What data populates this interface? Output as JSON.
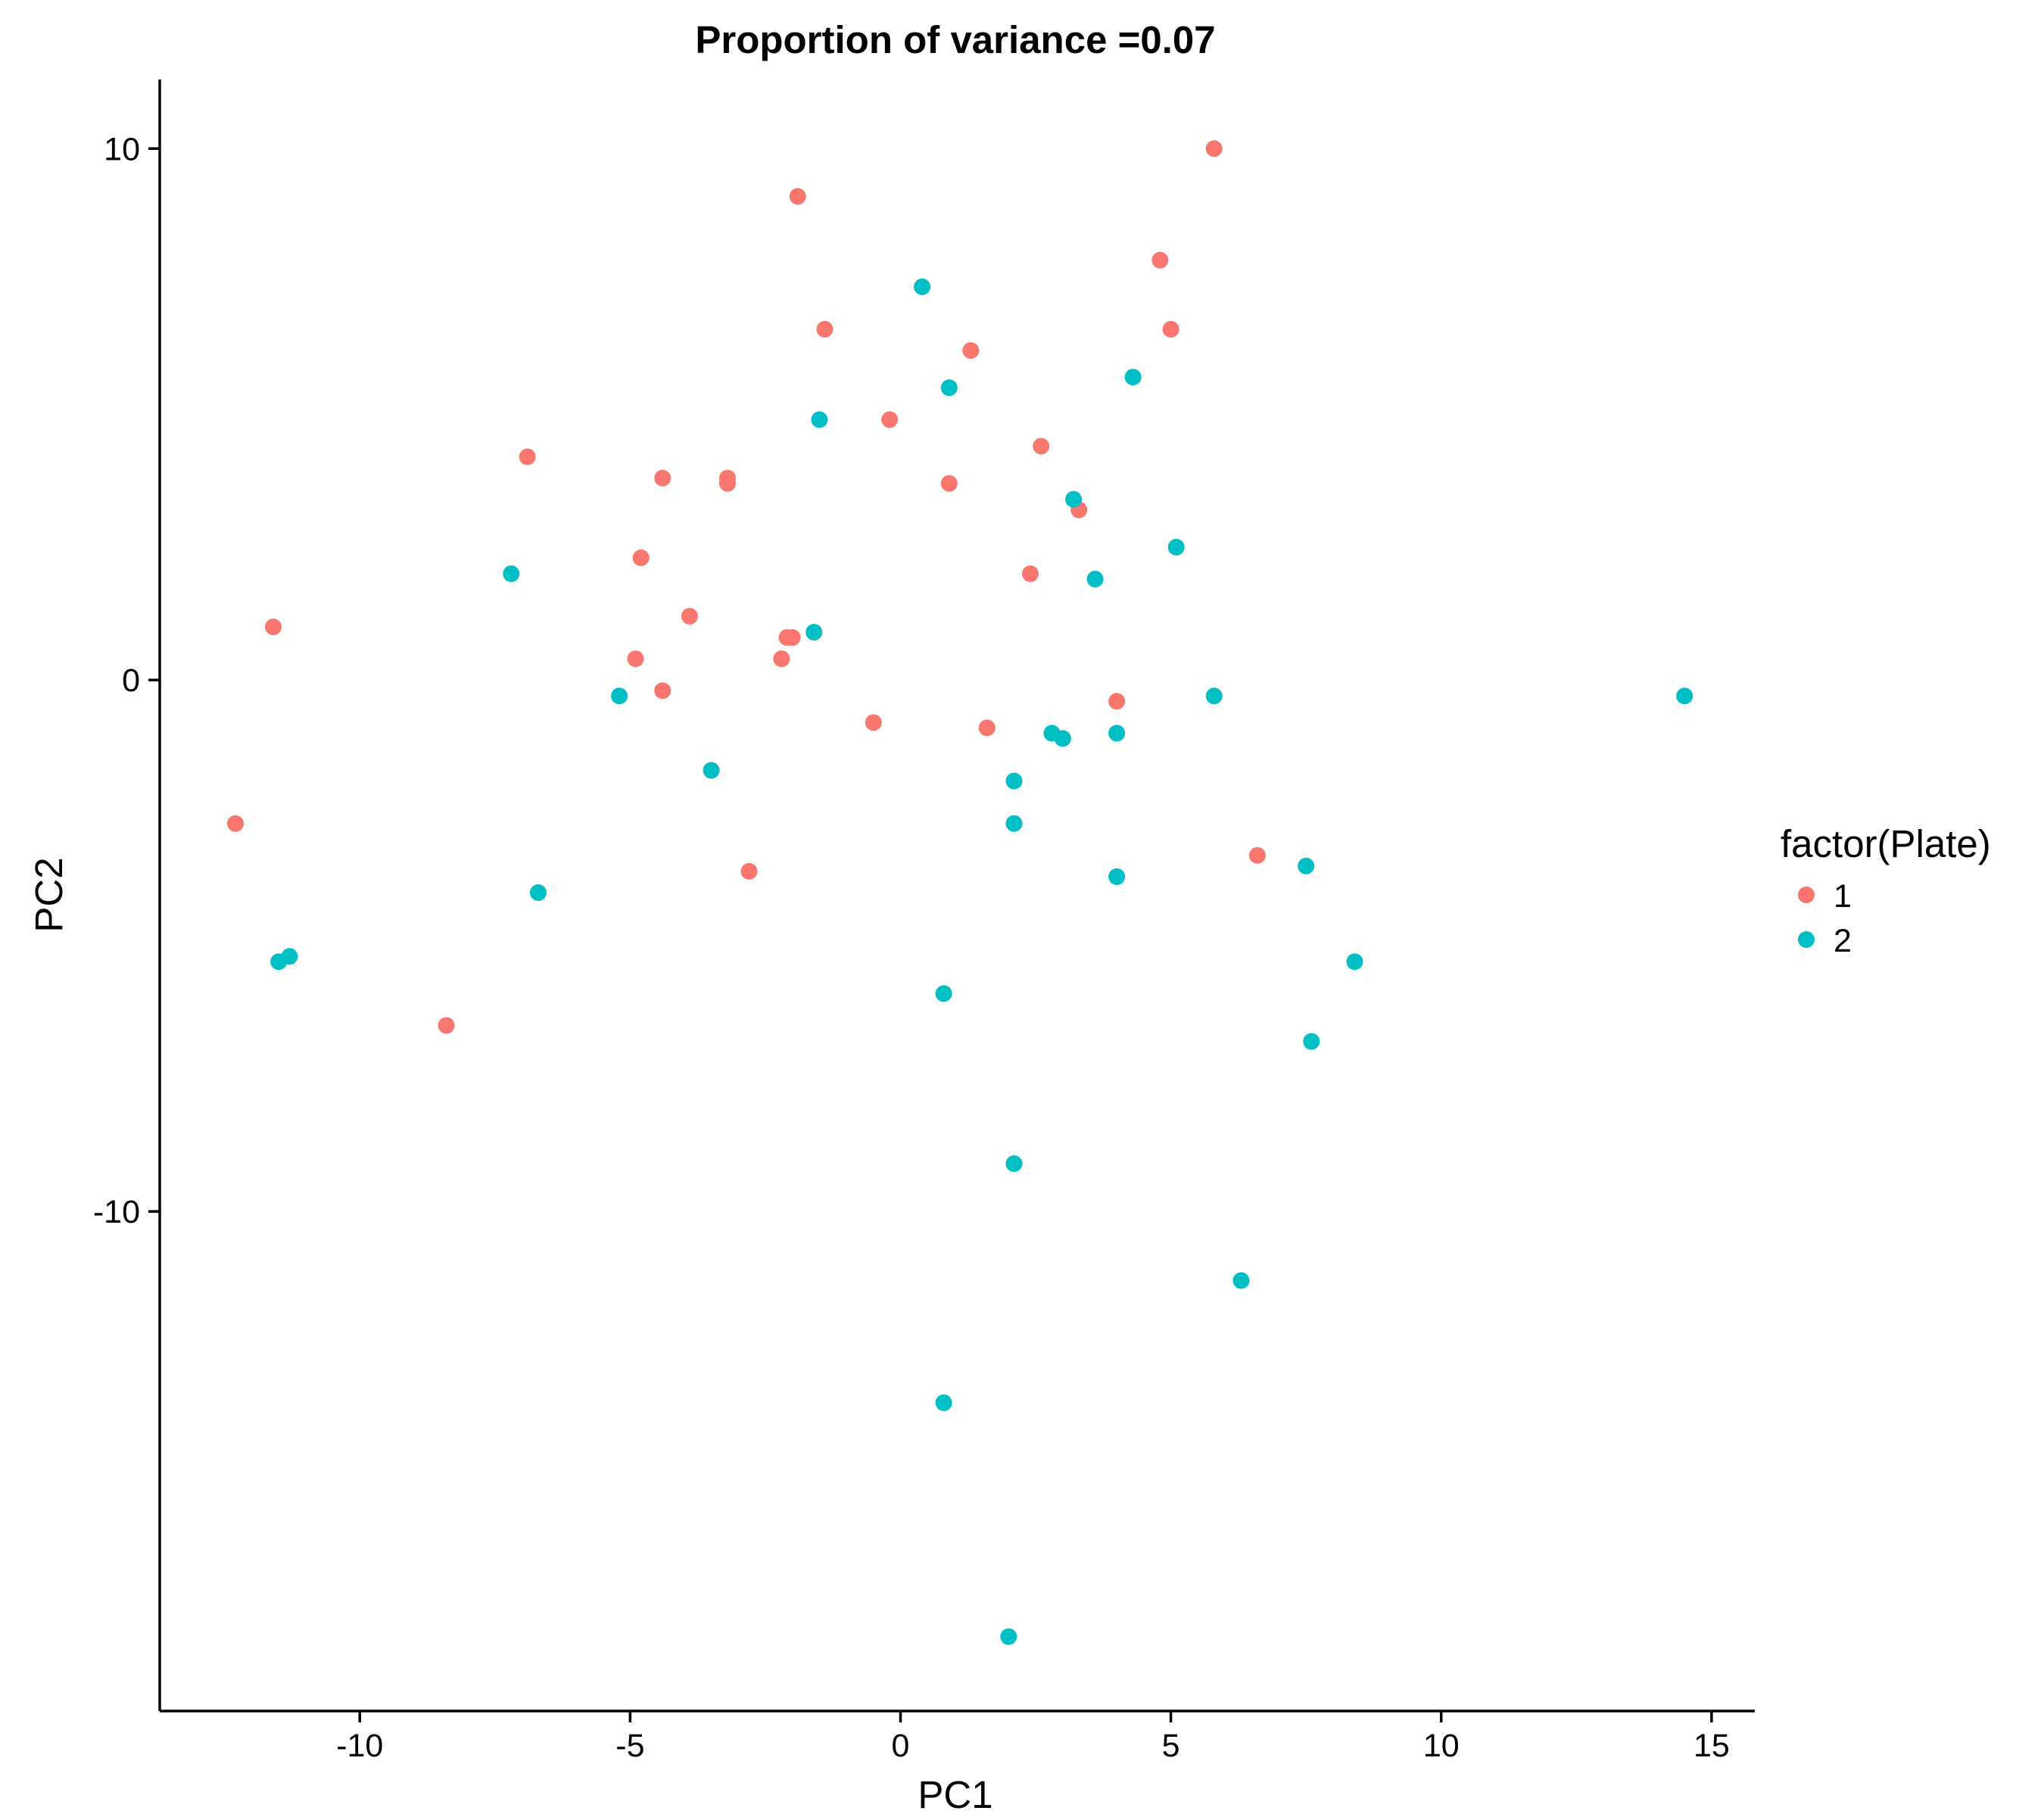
{
  "chart_data": {
    "type": "scatter",
    "title": "Proportion of variance =0.07",
    "xlabel": "PC1",
    "ylabel": "PC2",
    "xlim": [
      -13.7,
      15.8
    ],
    "ylim": [
      -19.4,
      11.3
    ],
    "xticks": [
      -10,
      -5,
      0,
      5,
      10,
      15
    ],
    "xtick_labels": [
      "-10",
      "-5",
      "0",
      "5",
      "10",
      "15"
    ],
    "yticks": [
      -10,
      0,
      10
    ],
    "ytick_labels": [
      "-10",
      "0",
      "10"
    ],
    "grid": false,
    "legend_position": "right",
    "legend": {
      "title": "factor(Plate)",
      "entries": [
        {
          "label": "1",
          "color": "#F8766D"
        },
        {
          "label": "2",
          "color": "#00BFC4"
        }
      ]
    },
    "series": [
      {
        "name": "1",
        "color": "#F8766D",
        "points": [
          [
            5.8,
            10.0
          ],
          [
            -1.9,
            9.1
          ],
          [
            4.8,
            7.9
          ],
          [
            5.0,
            6.6
          ],
          [
            -1.4,
            6.6
          ],
          [
            1.3,
            6.2
          ],
          [
            -0.2,
            4.9
          ],
          [
            2.6,
            4.4
          ],
          [
            -6.9,
            4.2
          ],
          [
            -4.4,
            3.8
          ],
          [
            -3.2,
            3.8
          ],
          [
            -3.2,
            3.7
          ],
          [
            0.9,
            3.7
          ],
          [
            3.3,
            3.2
          ],
          [
            -4.8,
            2.3
          ],
          [
            2.4,
            2.0
          ],
          [
            -3.9,
            1.2
          ],
          [
            -11.6,
            1.0
          ],
          [
            -2.1,
            0.8
          ],
          [
            -2.0,
            0.8
          ],
          [
            -2.2,
            0.4
          ],
          [
            -4.9,
            0.4
          ],
          [
            -4.4,
            -0.2
          ],
          [
            4.0,
            -0.4
          ],
          [
            -0.5,
            -0.8
          ],
          [
            1.6,
            -0.9
          ],
          [
            -12.3,
            -2.7
          ],
          [
            6.6,
            -3.3
          ],
          [
            -2.8,
            -3.6
          ],
          [
            -8.4,
            -6.5
          ]
        ]
      },
      {
        "name": "2",
        "color": "#00BFC4",
        "points": [
          [
            0.4,
            7.4
          ],
          [
            4.3,
            5.7
          ],
          [
            0.9,
            5.5
          ],
          [
            -1.5,
            4.9
          ],
          [
            3.2,
            3.4
          ],
          [
            5.1,
            2.5
          ],
          [
            -7.2,
            2.0
          ],
          [
            3.6,
            1.9
          ],
          [
            -1.6,
            0.9
          ],
          [
            5.8,
            -0.3
          ],
          [
            14.5,
            -0.3
          ],
          [
            -5.2,
            -0.3
          ],
          [
            2.8,
            -1.0
          ],
          [
            3.0,
            -1.1
          ],
          [
            4.0,
            -1.0
          ],
          [
            -3.5,
            -1.7
          ],
          [
            2.1,
            -1.9
          ],
          [
            2.1,
            -2.7
          ],
          [
            7.5,
            -3.5
          ],
          [
            4.0,
            -3.7
          ],
          [
            -6.7,
            -4.0
          ],
          [
            -11.3,
            -5.2
          ],
          [
            -11.5,
            -5.3
          ],
          [
            8.4,
            -5.3
          ],
          [
            0.8,
            -5.9
          ],
          [
            7.6,
            -6.8
          ],
          [
            2.1,
            -9.1
          ],
          [
            6.3,
            -11.3
          ],
          [
            0.8,
            -13.6
          ],
          [
            2.0,
            -18.0
          ]
        ]
      }
    ]
  }
}
